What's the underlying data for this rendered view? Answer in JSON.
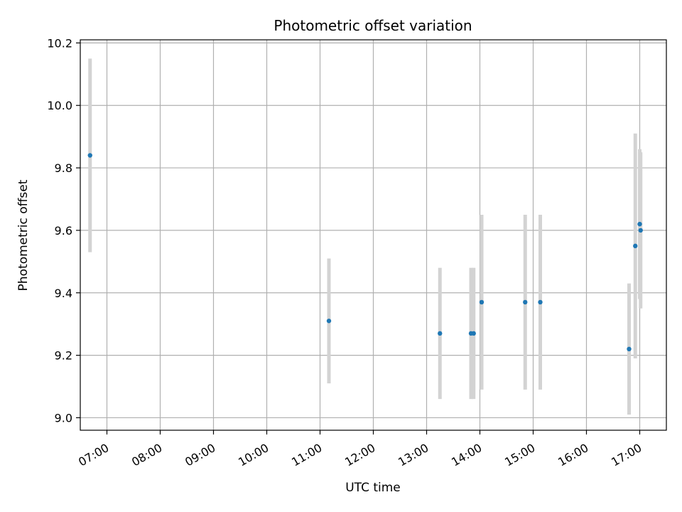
{
  "chart_data": {
    "type": "scatter",
    "title": "Photometric offset variation",
    "xlabel": "UTC time",
    "ylabel": "Photometric offset",
    "x_unit": "UTC hours",
    "xlim": [
      "06:30",
      "17:30"
    ],
    "ylim": [
      8.96,
      10.21
    ],
    "x_ticks": [
      "07:00",
      "08:00",
      "09:00",
      "10:00",
      "11:00",
      "12:00",
      "13:00",
      "14:00",
      "15:00",
      "16:00",
      "17:00"
    ],
    "y_ticks": [
      "9.0",
      "9.2",
      "9.4",
      "9.6",
      "9.8",
      "10.0",
      "10.2"
    ],
    "grid": true,
    "legend": "none",
    "colors": {
      "marker": "#1f77b4",
      "errorbar": "#d3d3d3",
      "grid": "#b0b0b0"
    },
    "points": [
      {
        "x": "06:41",
        "y": 9.84,
        "err": 0.31
      },
      {
        "x": "11:10",
        "y": 9.31,
        "err": 0.2
      },
      {
        "x": "13:15",
        "y": 9.27,
        "err": 0.21
      },
      {
        "x": "13:50",
        "y": 9.27,
        "err": 0.21
      },
      {
        "x": "13:53",
        "y": 9.27,
        "err": 0.21
      },
      {
        "x": "14:02",
        "y": 9.37,
        "err": 0.28
      },
      {
        "x": "14:51",
        "y": 9.37,
        "err": 0.28
      },
      {
        "x": "15:08",
        "y": 9.37,
        "err": 0.28
      },
      {
        "x": "16:48",
        "y": 9.22,
        "err": 0.21
      },
      {
        "x": "16:55",
        "y": 9.55,
        "err": 0.36
      },
      {
        "x": "17:00",
        "y": 9.62,
        "err": 0.24
      },
      {
        "x": "17:01",
        "y": 9.6,
        "err": 0.25
      }
    ]
  }
}
